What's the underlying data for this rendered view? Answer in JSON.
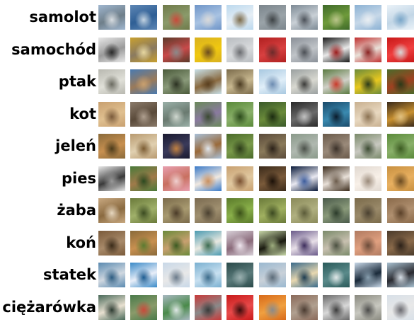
{
  "classes": [
    {
      "label": "samolot",
      "thumbs": [
        [
          "#9fb6cf",
          "#6f7f8a",
          "#d8dde2"
        ],
        [
          "#5d86b4",
          "#2f5f95",
          "#c4d4e2"
        ],
        [
          "#6f7a4a",
          "#8a9a6a",
          "#c94a3a"
        ],
        [
          "#6f95c8",
          "#a9c3e2",
          "#d9d9d9"
        ],
        [
          "#bcd9ee",
          "#e6eef5",
          "#7a6a4a"
        ],
        [
          "#7b858c",
          "#9aa3a8",
          "#3d4245"
        ],
        [
          "#7d8a95",
          "#c9d0d6",
          "#4a5058"
        ],
        [
          "#3f6a2a",
          "#6e9a3a",
          "#b9c48a"
        ],
        [
          "#8cb2d4",
          "#c7d8e8",
          "#e9eef2"
        ],
        [
          "#eaf2f8",
          "#c2d6e6",
          "#7aa6c8"
        ]
      ]
    },
    {
      "label": "samochód",
      "thumbs": [
        [
          "#e8e8e8",
          "#9a9a9a",
          "#2a2a2a"
        ],
        [
          "#c8a030",
          "#8a7a60",
          "#e8d8a0"
        ],
        [
          "#5a3a2a",
          "#c84a4a",
          "#8a8a8a"
        ],
        [
          "#d8b020",
          "#f0c810",
          "#6a4a20"
        ],
        [
          "#b8bcc0",
          "#d8dadc",
          "#6a6c70"
        ],
        [
          "#b02020",
          "#d84040",
          "#6a2a2a"
        ],
        [
          "#8a9098",
          "#c0c4c8",
          "#4a4e54"
        ],
        [
          "#1a1a1a",
          "#e8e8e8",
          "#9a1a1a"
        ],
        [
          "#c03030",
          "#e8e0d8",
          "#8a2020"
        ],
        [
          "#c81818",
          "#f04040",
          "#d8d8d8"
        ]
      ]
    },
    {
      "label": "ptak",
      "thumbs": [
        [
          "#b8b8b0",
          "#e0e0d8",
          "#6a6a60"
        ],
        [
          "#4a7ab0",
          "#9a7a5a",
          "#c8a070"
        ],
        [
          "#4a5a3a",
          "#8a9a7a",
          "#2a3020"
        ],
        [
          "#c8e0e8",
          "#8a6a40",
          "#5a4020"
        ],
        [
          "#7a6a4a",
          "#c8b890",
          "#4a3a20"
        ],
        [
          "#a8c8e0",
          "#e0eef8",
          "#6a8ab0"
        ],
        [
          "#9aa0a0",
          "#d8d8d0",
          "#3a3a38"
        ],
        [
          "#5a7a40",
          "#d0d0c8",
          "#c83a2a"
        ],
        [
          "#6a8a3a",
          "#e8c820",
          "#2a3a1a"
        ],
        [
          "#4a6a2a",
          "#a04020",
          "#2a3a18"
        ]
      ]
    },
    {
      "label": "kot",
      "thumbs": [
        [
          "#c8a070",
          "#e0c090",
          "#7a5a3a"
        ],
        [
          "#8a7a6a",
          "#5a4a3a",
          "#b0a090"
        ],
        [
          "#9ab0a8",
          "#6a7a70",
          "#d0d8d0"
        ],
        [
          "#6a8a5a",
          "#8a7aa0",
          "#3a4a30"
        ],
        [
          "#5a8a3a",
          "#8ab06a",
          "#2a4a1a"
        ],
        [
          "#3a5a2a",
          "#6a8a3a",
          "#1a2a10"
        ],
        [
          "#2a2a2a",
          "#6a6a6a",
          "#c0c0c0"
        ],
        [
          "#1a4a6a",
          "#3a8ab0",
          "#0a1a2a"
        ],
        [
          "#c8b090",
          "#e8d8c0",
          "#8a7050"
        ],
        [
          "#3a2a1a",
          "#c89030",
          "#e0c080"
        ]
      ]
    },
    {
      "label": "jeleń",
      "thumbs": [
        [
          "#8a6a3a",
          "#c89050",
          "#4a3a1a"
        ],
        [
          "#b89a70",
          "#e0d0b0",
          "#7a5a30"
        ],
        [
          "#1a1a30",
          "#3a3a5a",
          "#c08040"
        ],
        [
          "#a8c0d8",
          "#9a6a3a",
          "#e0e8f0"
        ],
        [
          "#4a6a2a",
          "#7a9a4a",
          "#2a3a18"
        ],
        [
          "#5a4a3a",
          "#8a7a5a",
          "#2a2018"
        ],
        [
          "#8a9a8a",
          "#b0b8b0",
          "#4a5048"
        ],
        [
          "#6a5a4a",
          "#9a8a7a",
          "#3a3028"
        ],
        [
          "#7a8a6a",
          "#c8c8c0",
          "#3a4a30"
        ],
        [
          "#5a8a3a",
          "#8ab06a",
          "#3a5a20"
        ]
      ]
    },
    {
      "label": "pies",
      "thumbs": [
        [
          "#e8e8e8",
          "#3a3a3a",
          "#9a9a9a"
        ],
        [
          "#4a7a3a",
          "#a07a4a",
          "#2a4a20"
        ],
        [
          "#e8a0b0",
          "#c87060",
          "#f0d0d0"
        ],
        [
          "#3a7ac8",
          "#f0e8e0",
          "#c89060"
        ],
        [
          "#c8a070",
          "#e0c8a0",
          "#7a5030"
        ],
        [
          "#3a2a1a",
          "#7a5a3a",
          "#1a1008"
        ],
        [
          "#0a1a3a",
          "#e8e8f0",
          "#3a5a9a"
        ],
        [
          "#3a2a1a",
          "#e8e0d8",
          "#6a5a4a"
        ],
        [
          "#e0d8d0",
          "#f8f0e8",
          "#9a8a7a"
        ],
        [
          "#c89040",
          "#e8b060",
          "#6a4a20"
        ]
      ]
    },
    {
      "label": "żaba",
      "thumbs": [
        [
          "#c8a880",
          "#8a6a40",
          "#e8d8c0"
        ],
        [
          "#6a7a3a",
          "#a0b06a",
          "#3a4a20"
        ],
        [
          "#7a6a4a",
          "#a89a70",
          "#4a3a28"
        ],
        [
          "#7a6a50",
          "#a09070",
          "#4a4030"
        ],
        [
          "#5a7a2a",
          "#8ab04a",
          "#3a5018"
        ],
        [
          "#6a7a3a",
          "#a0b060",
          "#3a4820"
        ],
        [
          "#8a8a5a",
          "#b0b080",
          "#5a5a38"
        ],
        [
          "#4a5a4a",
          "#8a9a7a",
          "#2a3a2a"
        ],
        [
          "#7a6a4a",
          "#9a8a6a",
          "#4a4030"
        ],
        [
          "#8a6a4a",
          "#b09070",
          "#5a4028"
        ]
      ]
    },
    {
      "label": "koń",
      "thumbs": [
        [
          "#7a5a3a",
          "#a88a6a",
          "#3a2a18"
        ],
        [
          "#8a6a3a",
          "#c89050",
          "#5a7a30"
        ],
        [
          "#6a8a3a",
          "#c8a070",
          "#3a5a20"
        ],
        [
          "#4a9ab0",
          "#e8e8e0",
          "#3a6a50"
        ],
        [
          "#d8d0d8",
          "#8a6a7a",
          "#f0e8f0"
        ],
        [
          "#c8d8a8",
          "#1a1a10",
          "#a0b080"
        ],
        [
          "#6a5a8a",
          "#e8e0e8",
          "#3a2a5a"
        ],
        [
          "#7a8a6a",
          "#c8c0b0",
          "#4a5040"
        ],
        [
          "#b07a60",
          "#e0a080",
          "#6a4a38"
        ],
        [
          "#4a3a2a",
          "#8a6a4a",
          "#2a2018"
        ]
      ]
    },
    {
      "label": "statek",
      "thumbs": [
        [
          "#5a8ab0",
          "#d0d8e0",
          "#2a5a80"
        ],
        [
          "#3a8ac8",
          "#e8eef8",
          "#1a5a90"
        ],
        [
          "#c8d8e8",
          "#e8e8e8",
          "#6a7a8a"
        ],
        [
          "#7ab0d0",
          "#c8e0f0",
          "#3a6a8a"
        ],
        [
          "#2a4a4a",
          "#5a7a7a",
          "#9ab0b0"
        ],
        [
          "#9ab8d0",
          "#c8d0d8",
          "#5a6a78"
        ],
        [
          "#3a6a8a",
          "#e8d8b0",
          "#1a3a50"
        ],
        [
          "#2a5a5a",
          "#5a8a8a",
          "#e0e8e8"
        ],
        [
          "#c8d8e8",
          "#1a2a3a",
          "#8aa0b0"
        ],
        [
          "#a8c0d0",
          "#2a2a30",
          "#d8e0e8"
        ]
      ]
    },
    {
      "label": "ciężarówka",
      "thumbs": [
        [
          "#4a6a5a",
          "#e8e0d0",
          "#2a3a30"
        ],
        [
          "#4a7a4a",
          "#8a9a6a",
          "#c84a3a"
        ],
        [
          "#a8b8c0",
          "#4a8a4a",
          "#e0e8e8"
        ],
        [
          "#c83a3a",
          "#8a8a8a",
          "#3a3a3a"
        ],
        [
          "#c81a1a",
          "#e84a4a",
          "#3a0a0a"
        ],
        [
          "#d86a1a",
          "#f0a040",
          "#8a8a8a"
        ],
        [
          "#8a6a5a",
          "#b0a090",
          "#4a3a30"
        ],
        [
          "#6a6a6a",
          "#d8d8d8",
          "#3a3a3a"
        ],
        [
          "#8a8a80",
          "#c8c8c0",
          "#4a4a48"
        ],
        [
          "#d8e0e8",
          "#e8e8e8",
          "#6a6a70"
        ]
      ]
    }
  ]
}
